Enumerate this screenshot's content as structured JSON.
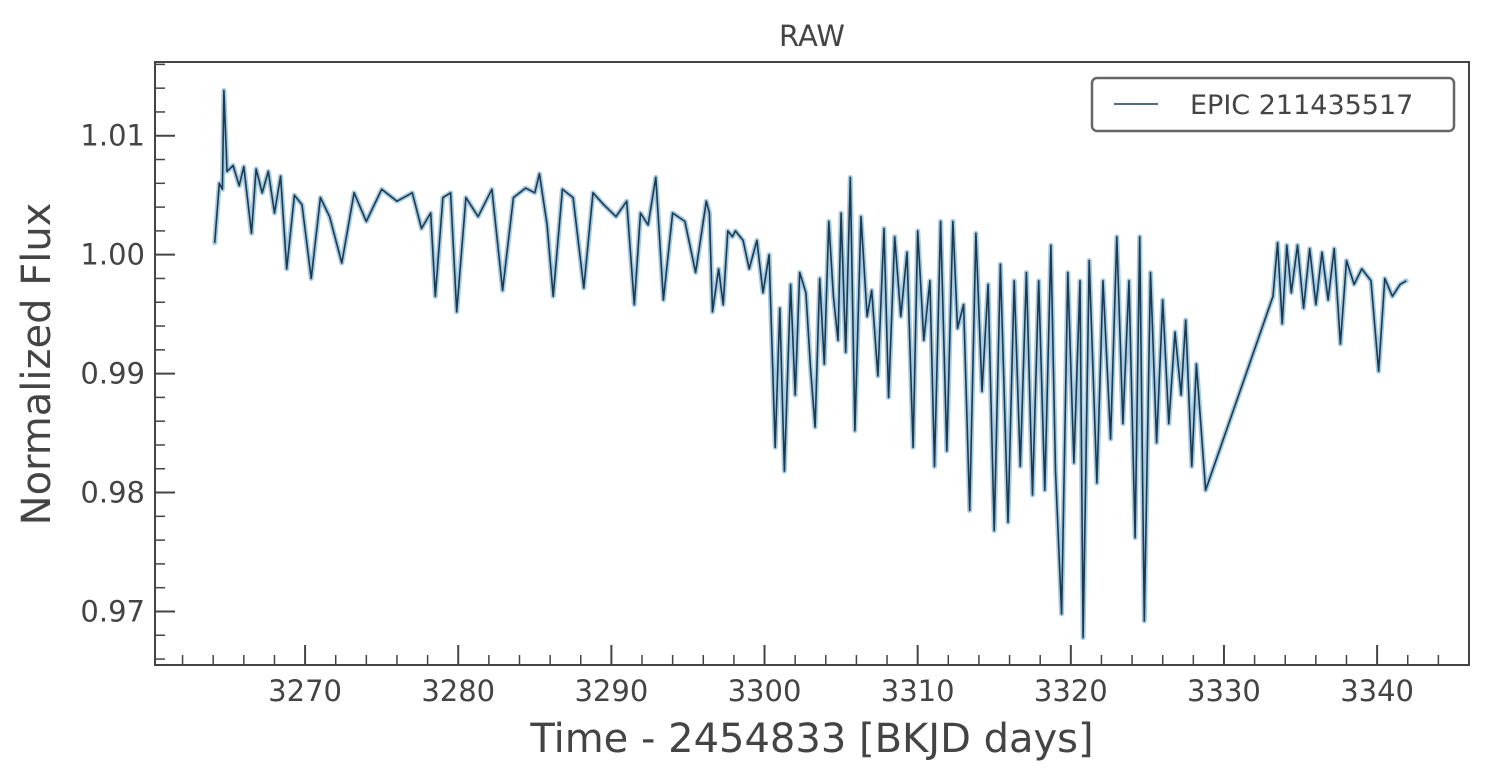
{
  "chart_data": {
    "type": "line",
    "title": "RAW",
    "xlabel": "Time - 2454833 [BKJD days]",
    "ylabel": "Normalized Flux",
    "xlim": [
      3260.2,
      3346.0
    ],
    "ylim": [
      0.9655,
      1.0162
    ],
    "x_ticks": [
      3270,
      3280,
      3290,
      3300,
      3310,
      3320,
      3330,
      3340
    ],
    "x_tick_labels": [
      "3270",
      "3280",
      "3290",
      "3300",
      "3310",
      "3320",
      "3330",
      "3340"
    ],
    "y_ticks": [
      0.97,
      0.98,
      0.99,
      1.0,
      1.01
    ],
    "y_tick_labels": [
      "0.97",
      "0.98",
      "0.99",
      "1.00",
      "1.01"
    ],
    "grid": false,
    "legend": {
      "position": "top-right",
      "entries": [
        "EPIC 211435517"
      ]
    },
    "colors": {
      "line": "#1b3a4f",
      "points": "#a6cbe3",
      "axis": "#444444"
    },
    "series": [
      {
        "name": "EPIC 211435517",
        "x": [
          3264.1,
          3264.4,
          3264.6,
          3264.7,
          3264.9,
          3265.3,
          3265.7,
          3266.0,
          3266.5,
          3266.8,
          3267.2,
          3267.6,
          3268.0,
          3268.4,
          3268.8,
          3269.3,
          3269.8,
          3270.4,
          3271.0,
          3271.6,
          3272.4,
          3273.2,
          3274.0,
          3275.0,
          3276.0,
          3277.0,
          3277.6,
          3278.2,
          3278.5,
          3279.0,
          3279.5,
          3279.9,
          3280.5,
          3281.3,
          3282.2,
          3282.9,
          3283.6,
          3284.4,
          3285.0,
          3285.3,
          3285.8,
          3286.2,
          3286.8,
          3287.5,
          3288.2,
          3288.8,
          3289.5,
          3290.3,
          3291.0,
          3291.5,
          3291.9,
          3292.4,
          3292.9,
          3293.4,
          3294.0,
          3294.8,
          3295.5,
          3296.2,
          3296.4,
          3296.6,
          3297.0,
          3297.3,
          3297.6,
          3297.9,
          3298.1,
          3298.6,
          3299.0,
          3299.5,
          3299.9,
          3300.3,
          3300.7,
          3301.0,
          3301.3,
          3301.7,
          3302.0,
          3302.3,
          3302.7,
          3303.0,
          3303.3,
          3303.6,
          3303.9,
          3304.2,
          3304.5,
          3304.8,
          3305.0,
          3305.3,
          3305.6,
          3305.9,
          3306.3,
          3306.7,
          3307.0,
          3307.4,
          3307.8,
          3308.1,
          3308.5,
          3308.9,
          3309.3,
          3309.7,
          3310.0,
          3310.4,
          3310.8,
          3311.1,
          3311.5,
          3311.9,
          3312.3,
          3312.6,
          3313.0,
          3313.4,
          3313.8,
          3314.2,
          3314.6,
          3315.0,
          3315.4,
          3315.9,
          3316.3,
          3316.7,
          3317.1,
          3317.5,
          3317.9,
          3318.3,
          3318.7,
          3319.0,
          3319.4,
          3319.8,
          3320.2,
          3320.6,
          3320.8,
          3321.2,
          3321.7,
          3322.1,
          3322.6,
          3323.0,
          3323.4,
          3323.8,
          3324.2,
          3324.5,
          3324.8,
          3325.2,
          3325.6,
          3326.0,
          3326.4,
          3326.8,
          3327.2,
          3327.5,
          3327.9,
          3328.2,
          3328.5,
          3328.8,
          3333.2,
          3333.5,
          3333.8,
          3334.1,
          3334.4,
          3334.8,
          3335.2,
          3335.6,
          3336.0,
          3336.4,
          3336.8,
          3337.2,
          3337.6,
          3338.0,
          3338.5,
          3339.0,
          3339.6,
          3340.1,
          3340.5,
          3341.0,
          3341.5,
          3341.9
        ],
        "y": [
          1.001,
          1.006,
          1.0055,
          1.0138,
          1.007,
          1.0075,
          1.0058,
          1.0074,
          1.0018,
          1.0072,
          1.0052,
          1.007,
          1.0035,
          1.0066,
          0.9988,
          1.005,
          1.0042,
          0.998,
          1.0048,
          1.0032,
          0.9993,
          1.0052,
          1.0028,
          1.0055,
          1.0045,
          1.0052,
          1.0022,
          1.0035,
          0.9965,
          1.0048,
          1.0052,
          0.9952,
          1.0048,
          1.0032,
          1.0055,
          0.997,
          1.0048,
          1.0056,
          1.0052,
          1.0068,
          1.0025,
          0.9965,
          1.0055,
          1.0048,
          0.9972,
          1.0052,
          1.0042,
          1.0032,
          1.0045,
          0.9958,
          1.0035,
          1.0025,
          1.0065,
          0.9962,
          1.0035,
          1.0028,
          0.9985,
          1.0045,
          1.0035,
          0.9952,
          0.9988,
          0.9958,
          1.002,
          1.0015,
          1.002,
          1.0012,
          0.9988,
          1.0012,
          0.9968,
          1.0,
          0.9838,
          0.9955,
          0.9818,
          0.9975,
          0.9882,
          0.9985,
          0.9968,
          0.9905,
          0.9855,
          0.998,
          0.9908,
          1.0028,
          0.9965,
          0.9928,
          1.0035,
          0.9918,
          1.0065,
          0.9852,
          1.0032,
          0.9948,
          0.997,
          0.9898,
          1.0022,
          0.988,
          1.0015,
          0.9948,
          1.0002,
          0.9838,
          1.002,
          0.9928,
          0.9978,
          0.9822,
          1.0028,
          0.9835,
          1.0028,
          0.9938,
          0.9958,
          0.9785,
          1.0018,
          0.9885,
          0.9975,
          0.9768,
          0.9992,
          0.9775,
          0.9978,
          0.9822,
          0.9985,
          0.9798,
          0.9978,
          0.9802,
          1.0008,
          0.9818,
          0.9698,
          0.9985,
          0.9825,
          0.9978,
          0.9678,
          0.9995,
          0.9808,
          0.9978,
          0.9845,
          1.0015,
          0.9858,
          0.9978,
          0.9762,
          1.0015,
          0.9692,
          0.9985,
          0.9842,
          0.9962,
          0.9858,
          0.9935,
          0.9882,
          0.9945,
          0.9822,
          0.9908,
          0.9855,
          0.9802,
          0.9965,
          1.001,
          0.9942,
          1.0008,
          0.9968,
          1.0008,
          0.9955,
          1.0005,
          0.9958,
          1.0002,
          0.9962,
          1.0005,
          0.9925,
          0.9995,
          0.9975,
          0.9988,
          0.9978,
          0.9902,
          0.998,
          0.9965,
          0.9975,
          0.9978
        ]
      }
    ]
  }
}
